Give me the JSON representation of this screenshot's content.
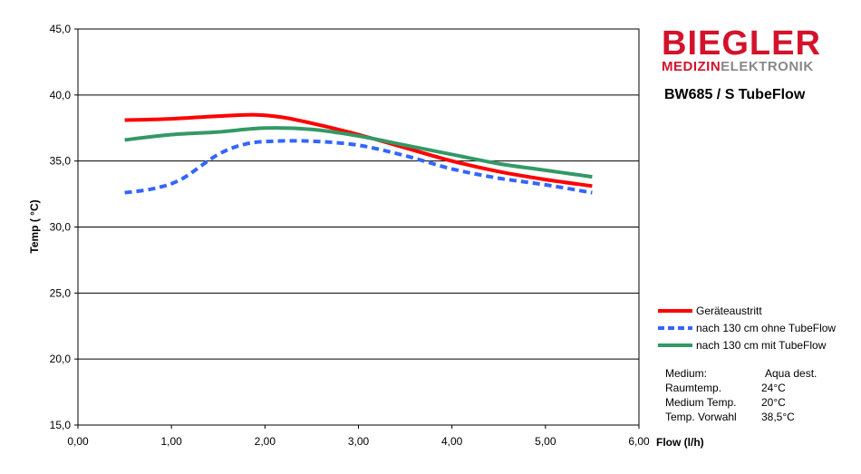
{
  "chart_data": {
    "type": "line",
    "xlabel": "Flow (l/h)",
    "ylabel": "Temp ( °C)",
    "xlim": [
      0,
      6
    ],
    "ylim": [
      15,
      45
    ],
    "x_ticks": [
      "0,00",
      "1,00",
      "2,00",
      "3,00",
      "4,00",
      "5,00",
      "6,00"
    ],
    "y_ticks": [
      "15,0",
      "20,0",
      "25,0",
      "30,0",
      "35,0",
      "40,0",
      "45,0"
    ],
    "grid": "horizontal",
    "legend_position": "right",
    "series": [
      {
        "name": "Geräteaustritt",
        "color": "#ff0000",
        "style": "solid",
        "x": [
          0.5,
          1.0,
          1.5,
          1.9,
          2.2,
          2.6,
          3.0,
          3.5,
          4.0,
          4.5,
          5.0,
          5.5
        ],
        "y": [
          38.1,
          38.2,
          38.4,
          38.5,
          38.3,
          37.7,
          37.0,
          36.0,
          35.0,
          34.2,
          33.6,
          33.1
        ]
      },
      {
        "name": "nach 130 cm ohne TubeFlow",
        "color": "#3366ff",
        "style": "dashed",
        "x": [
          0.5,
          0.8,
          1.1,
          1.5,
          1.8,
          2.1,
          2.5,
          3.0,
          3.5,
          4.0,
          4.5,
          5.0,
          5.5
        ],
        "y": [
          32.6,
          32.9,
          33.6,
          35.5,
          36.3,
          36.5,
          36.5,
          36.2,
          35.4,
          34.4,
          33.7,
          33.2,
          32.6
        ]
      },
      {
        "name": "nach 130 cm mit TubeFlow",
        "color": "#339966",
        "style": "solid",
        "x": [
          0.5,
          1.0,
          1.5,
          2.0,
          2.5,
          3.0,
          3.5,
          4.0,
          4.5,
          5.0,
          5.5
        ],
        "y": [
          36.6,
          37.0,
          37.2,
          37.5,
          37.4,
          36.9,
          36.2,
          35.5,
          34.8,
          34.3,
          33.8
        ]
      }
    ]
  },
  "logo": {
    "main": "BIEGLER",
    "sub_red": "MEDIZIN",
    "sub_gray": "ELEKTRONIK"
  },
  "product_title": "BW685 / S TubeFlow",
  "info": [
    {
      "key": "Medium:",
      "value": "Aqua dest."
    },
    {
      "key": "Raumtemp.",
      "value": "24°C"
    },
    {
      "key": "Medium Temp.",
      "value": "20°C"
    },
    {
      "key": "Temp. Vorwahl",
      "value": "38,5°C"
    }
  ]
}
